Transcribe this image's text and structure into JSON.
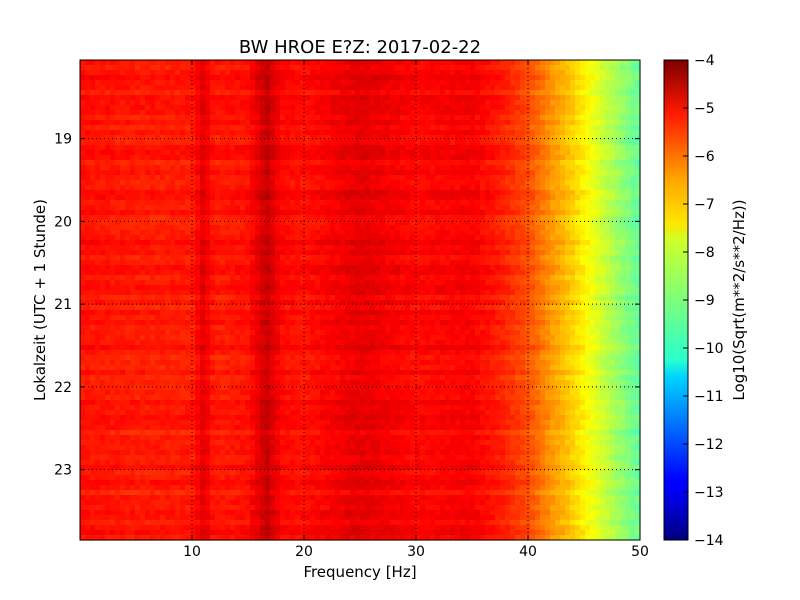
{
  "chart_data": {
    "type": "heatmap",
    "title": "BW HROE E?Z: 2017-02-22",
    "xlabel": "Frequency [Hz]",
    "ylabel": "Lokalzeit (UTC + 1 Stunde)",
    "xlim": [
      0,
      50
    ],
    "ylim": [
      18.05,
      23.85
    ],
    "y_inverted": true,
    "x_ticks": [
      "10",
      "20",
      "30",
      "40",
      "50"
    ],
    "x_tick_values": [
      10,
      20,
      30,
      40,
      50
    ],
    "y_ticks": [
      "19",
      "20",
      "21",
      "22",
      "23"
    ],
    "y_tick_values": [
      19,
      20,
      21,
      22,
      23
    ],
    "grid": true,
    "colormap": "jet",
    "colorbar": {
      "label": "Log10(Sqrt(m**2/s**2/Hz))",
      "range": [
        -14,
        -4
      ],
      "ticks": [
        "−4",
        "−5",
        "−6",
        "−7",
        "−8",
        "−9",
        "−10",
        "−11",
        "−12",
        "−13",
        "−14"
      ],
      "tick_values": [
        -4,
        -5,
        -6,
        -7,
        -8,
        -9,
        -10,
        -11,
        -12,
        -13,
        -14
      ]
    },
    "spectral_profile": {
      "frequency_hz": [
        0,
        5,
        10,
        11,
        12,
        15,
        16.7,
        18,
        20,
        25,
        30,
        35,
        38,
        40,
        42,
        44,
        46,
        48,
        50
      ],
      "log_amplitude": [
        -5.4,
        -5.5,
        -5.5,
        -5.0,
        -5.5,
        -5.4,
        -4.7,
        -5.3,
        -5.4,
        -5.0,
        -5.3,
        -5.2,
        -5.6,
        -6.0,
        -6.7,
        -7.3,
        -8.0,
        -8.7,
        -9.3
      ]
    }
  }
}
